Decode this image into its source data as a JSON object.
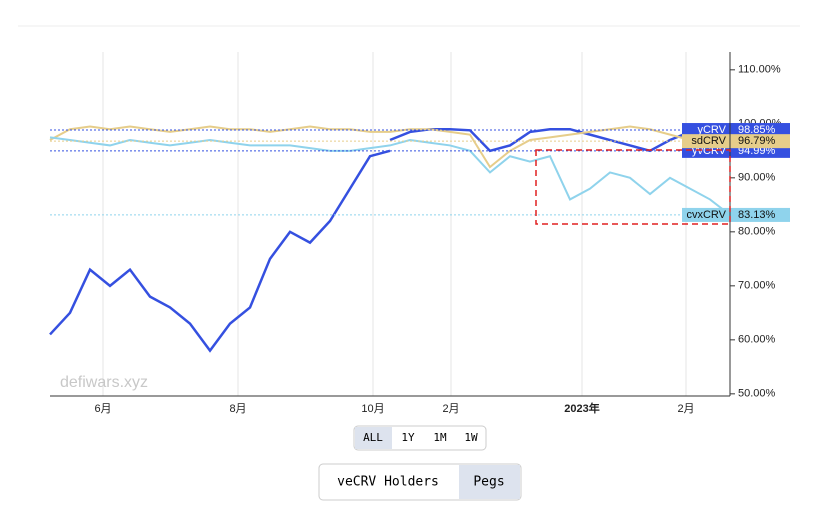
{
  "chart_data": {
    "type": "line",
    "x": [
      0,
      20,
      40,
      60,
      80,
      100,
      120,
      140,
      160,
      180,
      200,
      220,
      240,
      260,
      280,
      300,
      320,
      340,
      360,
      380,
      400,
      420,
      440,
      460,
      480,
      500,
      520,
      540,
      560,
      580,
      600,
      620,
      640,
      660,
      680
    ],
    "xlim": [
      0,
      680
    ],
    "xticks": [
      {
        "value": 53,
        "label": "6月"
      },
      {
        "value": 188,
        "label": "8月"
      },
      {
        "value": 323,
        "label": "10月"
      },
      {
        "value": 401,
        "label": "2月"
      },
      {
        "value": 532,
        "label": "2023年"
      },
      {
        "value": 636,
        "label": "2月"
      }
    ],
    "ylim": [
      49.6,
      113.3
    ],
    "yticks": [
      {
        "value": 50,
        "label": "50.00%"
      },
      {
        "value": 60,
        "label": "60.00%"
      },
      {
        "value": 70,
        "label": "70.00%"
      },
      {
        "value": 80,
        "label": "80.00%"
      },
      {
        "value": 90,
        "label": "90.00%"
      },
      {
        "value": 100,
        "label": "100.00%"
      },
      {
        "value": 110,
        "label": "110.00%"
      }
    ],
    "grid": true,
    "series": [
      {
        "name": "yvCRV",
        "color": "#3550e0",
        "current": {
          "value": 94.99,
          "label": "94.99%"
        },
        "values": [
          61,
          65,
          73,
          70,
          73,
          68,
          66,
          63,
          58,
          63,
          66,
          75,
          80,
          78,
          82,
          88,
          94,
          95,
          null,
          null,
          null,
          null,
          null,
          null,
          null,
          null,
          null,
          null,
          null,
          null,
          null,
          null,
          null,
          null,
          null
        ]
      },
      {
        "name": "yCRV",
        "color": "#3550e0",
        "current": {
          "value": 98.85,
          "label": "98.85%"
        },
        "values": [
          null,
          null,
          null,
          null,
          null,
          null,
          null,
          null,
          null,
          null,
          null,
          null,
          null,
          null,
          null,
          null,
          null,
          97,
          98.5,
          99,
          99,
          98.8,
          95,
          96,
          98.5,
          99,
          99,
          98,
          97,
          96,
          95,
          97,
          98.5,
          98.5,
          98.85
        ]
      },
      {
        "name": "sdCRV",
        "color": "#e6cd8a",
        "current": {
          "value": 96.79,
          "label": "96.79%"
        },
        "values": [
          97,
          99,
          99.5,
          99,
          99.5,
          99,
          98.5,
          99,
          99.5,
          99,
          99,
          98.5,
          99,
          99.5,
          99,
          99,
          98.5,
          98.5,
          99,
          99,
          98.5,
          98,
          92,
          95,
          97,
          97.5,
          98,
          98.5,
          99,
          99.5,
          99,
          98,
          97,
          97,
          96.79
        ]
      },
      {
        "name": "cvxCRV",
        "color": "#8fd3ec",
        "current": {
          "value": 83.13,
          "label": "83.13%"
        },
        "values": [
          97.5,
          97,
          96.5,
          96,
          97,
          96.5,
          96,
          96.5,
          97,
          96.5,
          96,
          96,
          96,
          95.5,
          95,
          95,
          95.5,
          96,
          97,
          96.5,
          96,
          95,
          91,
          94,
          93,
          94,
          86,
          88,
          91,
          90,
          87,
          90,
          88,
          86,
          83.13
        ]
      }
    ]
  },
  "watermark": "defiwars.xyz",
  "range_buttons": [
    "ALL",
    "1Y",
    "1M",
    "1W"
  ],
  "tabs": [
    "veCRV Holders",
    "Pegs"
  ]
}
